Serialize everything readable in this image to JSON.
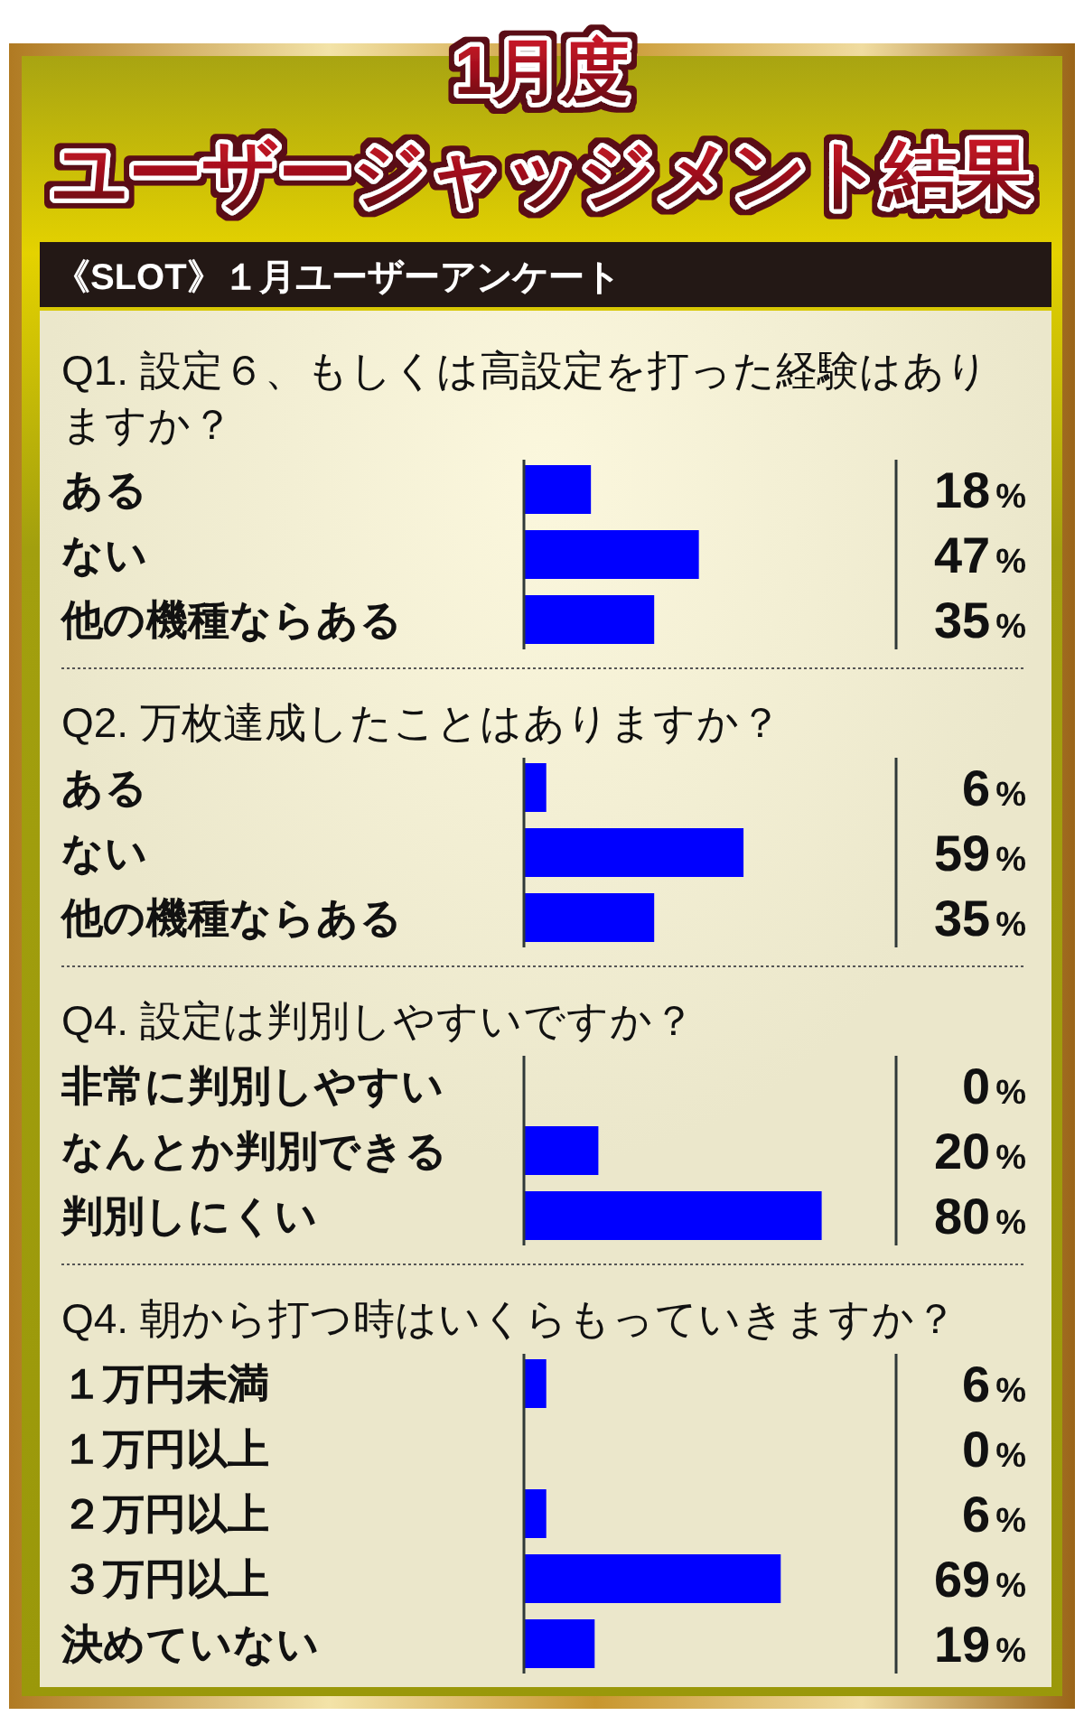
{
  "chart_data": [
    {
      "type": "bar",
      "orientation": "horizontal",
      "title": "Q1. 設定６、もしくは高設定を打った経験はありますか？",
      "annotations": [
        "1月度",
        "ユーザージャッジメント結果",
        "《SLOT》１月ユーザーアンケート"
      ],
      "categories": [
        "ある",
        "ない",
        "他の機種ならある"
      ],
      "values": [
        18,
        47,
        35
      ],
      "value_labels": [
        "18%",
        "47%",
        "35%"
      ],
      "color": "#0000ff",
      "xlim": [
        0,
        100
      ],
      "tick_labels": "y"
    },
    {
      "type": "bar",
      "orientation": "horizontal",
      "title": "Q2. 万枚達成したことはありますか？",
      "categories": [
        "ある",
        "ない",
        "他の機種ならある"
      ],
      "values": [
        6,
        59,
        35
      ],
      "value_labels": [
        "6%",
        "59%",
        "35%"
      ],
      "color": "#0000ff",
      "xlim": [
        0,
        100
      ],
      "tick_labels": "y"
    },
    {
      "type": "bar",
      "orientation": "horizontal",
      "title": "Q4. 設定は判別しやすいですか？",
      "categories": [
        "非常に判別しやすい",
        "なんとか判別できる",
        "判別しにくい"
      ],
      "values": [
        0,
        20,
        80
      ],
      "value_labels": [
        "0%",
        "20%",
        "80%"
      ],
      "color": "#0000ff",
      "xlim": [
        0,
        100
      ],
      "tick_labels": "y"
    },
    {
      "type": "bar",
      "orientation": "horizontal",
      "title": "Q4. 朝から打つ時はいくらもっていきますか？",
      "categories": [
        "１万円未満",
        "１万円以上",
        "２万円以上",
        "３万円以上",
        "決めていない"
      ],
      "values": [
        6,
        0,
        6,
        69,
        19
      ],
      "value_labels": [
        "6%",
        "0%",
        "6%",
        "69%",
        "19%"
      ],
      "color": "#0000ff",
      "xlim": [
        0,
        100
      ],
      "tick_labels": "y"
    }
  ]
}
